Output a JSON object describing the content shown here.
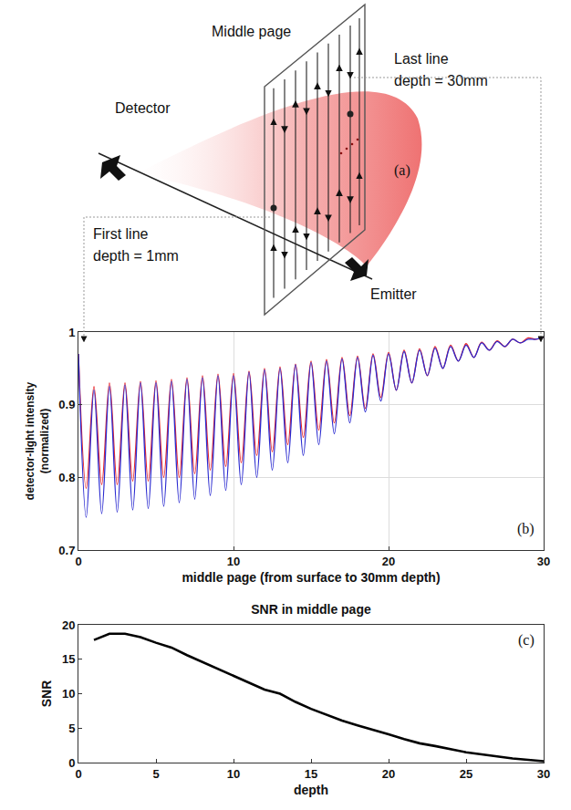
{
  "diagram": {
    "panel": "(a)",
    "page_label": "Middle page",
    "detector": "Detector",
    "emitter": "Emitter",
    "first_line": [
      "First line",
      "depth = 1mm"
    ],
    "last_line": [
      "Last line",
      "depth = 30mm"
    ]
  },
  "chart_data": [
    {
      "type": "line",
      "annotation": "(b)",
      "xlabel": "middle page (from surface to 30mm depth)",
      "ylabel": "detector-light intensity (normalized)",
      "x": [
        0,
        0.5,
        1,
        1.5,
        2,
        2.5,
        3,
        3.5,
        4,
        4.5,
        5,
        5.5,
        6,
        6.5,
        7,
        7.5,
        8,
        8.5,
        9,
        9.5,
        10,
        10.5,
        11,
        11.5,
        12,
        12.5,
        13,
        13.5,
        14,
        14.5,
        15,
        15.5,
        16,
        16.5,
        17,
        17.5,
        18,
        18.5,
        19,
        19.5,
        20,
        20.5,
        21,
        21.5,
        22,
        22.5,
        23,
        23.5,
        24,
        24.5,
        25,
        25.5,
        26,
        26.5,
        27,
        27.5,
        28,
        28.5,
        29,
        29.5,
        30
      ],
      "series": [
        {
          "color": "#e8262b",
          "values": [
            0.97,
            0.785,
            0.925,
            0.79,
            0.93,
            0.79,
            0.93,
            0.795,
            0.932,
            0.795,
            0.933,
            0.8,
            0.935,
            0.8,
            0.937,
            0.805,
            0.94,
            0.81,
            0.942,
            0.815,
            0.943,
            0.82,
            0.946,
            0.83,
            0.95,
            0.835,
            0.952,
            0.845,
            0.956,
            0.855,
            0.96,
            0.865,
            0.962,
            0.875,
            0.965,
            0.885,
            0.967,
            0.895,
            0.97,
            0.91,
            0.972,
            0.92,
            0.975,
            0.93,
            0.977,
            0.94,
            0.98,
            0.95,
            0.982,
            0.96,
            0.984,
            0.965,
            0.986,
            0.975,
            0.988,
            0.98,
            0.99,
            0.985,
            0.992,
            0.99,
            0.993
          ]
        },
        {
          "color": "#2a2ad0",
          "values": [
            0.97,
            0.745,
            0.92,
            0.75,
            0.925,
            0.752,
            0.927,
            0.755,
            0.93,
            0.757,
            0.93,
            0.76,
            0.932,
            0.765,
            0.935,
            0.77,
            0.937,
            0.775,
            0.94,
            0.782,
            0.94,
            0.79,
            0.945,
            0.8,
            0.948,
            0.81,
            0.95,
            0.82,
            0.955,
            0.83,
            0.958,
            0.845,
            0.96,
            0.86,
            0.963,
            0.875,
            0.965,
            0.89,
            0.968,
            0.905,
            0.97,
            0.92,
            0.973,
            0.93,
            0.975,
            0.94,
            0.978,
            0.95,
            0.98,
            0.96,
            0.982,
            0.965,
            0.985,
            0.975,
            0.987,
            0.98,
            0.99,
            0.985,
            0.99,
            0.99,
            0.993
          ]
        }
      ],
      "xlim": [
        0,
        30
      ],
      "xticks": [
        0,
        10,
        20,
        30
      ],
      "ylim": [
        0.7,
        1
      ],
      "yticks": [
        0.7,
        0.8,
        0.9,
        1
      ],
      "grid": true
    },
    {
      "type": "line",
      "title": "SNR in middle page",
      "annotation": "(c)",
      "xlabel": "depth",
      "ylabel": "SNR",
      "x": [
        1,
        2,
        3,
        4,
        5,
        6,
        7,
        8,
        9,
        10,
        11,
        12,
        13,
        14,
        15,
        16,
        17,
        18,
        19,
        20,
        21,
        22,
        23,
        24,
        25,
        26,
        27,
        28,
        29,
        30
      ],
      "series": [
        {
          "color": "#000000",
          "values": [
            17.8,
            18.7,
            18.7,
            18.2,
            17.4,
            16.7,
            15.6,
            14.6,
            13.6,
            12.7,
            11.7,
            10.6,
            10.0,
            8.8,
            7.8,
            6.9,
            6.1,
            5.4,
            4.8,
            4.1,
            3.4,
            2.8,
            2.4,
            1.9,
            1.5,
            1.2,
            0.9,
            0.6,
            0.4,
            0.2
          ]
        }
      ],
      "xlim": [
        0,
        30
      ],
      "xticks": [
        0,
        5,
        10,
        15,
        20,
        25,
        30
      ],
      "ylim": [
        0,
        20
      ],
      "yticks": [
        0,
        5,
        10,
        15,
        20
      ],
      "grid": false
    }
  ]
}
